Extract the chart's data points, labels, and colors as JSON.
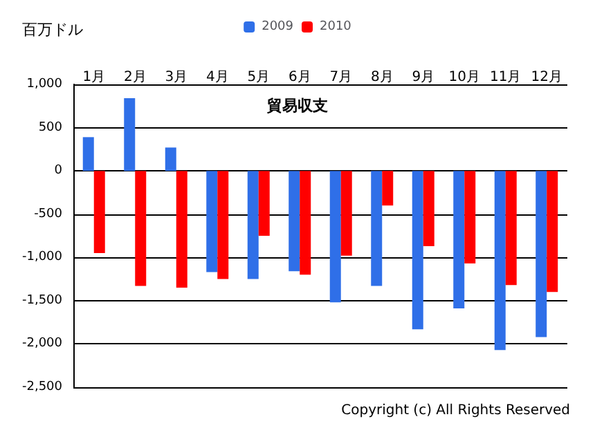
{
  "chart_data": {
    "type": "bar",
    "title": "貿易収支",
    "ylabel": "百万ドル",
    "categories": [
      "1月",
      "2月",
      "3月",
      "4月",
      "5月",
      "6月",
      "7月",
      "8月",
      "9月",
      "10月",
      "11月",
      "12月"
    ],
    "series": [
      {
        "name": "2009",
        "color": "#2f6fe8",
        "values": [
          390,
          840,
          270,
          -1170,
          -1250,
          -1160,
          -1520,
          -1330,
          -1830,
          -1590,
          -2070,
          -1920
        ]
      },
      {
        "name": "2010",
        "color": "#ff0000",
        "values": [
          -950,
          -1330,
          -1350,
          -1250,
          -750,
          -1200,
          -980,
          -400,
          -870,
          -1070,
          -1320,
          -1400
        ]
      }
    ],
    "ylim": [
      -2500,
      1000
    ],
    "yticks": [
      {
        "value": -2500,
        "label": "-2,500"
      },
      {
        "value": -2000,
        "label": "-2,000"
      },
      {
        "value": -1500,
        "label": "-1,500"
      },
      {
        "value": -1000,
        "label": "-1,000"
      },
      -500,
      0,
      500,
      {
        "value": 1000,
        "label": "1,000"
      }
    ],
    "grid": "y",
    "legend": "top",
    "annotations": [
      "Copyright (c) All Rights Reserved"
    ]
  }
}
